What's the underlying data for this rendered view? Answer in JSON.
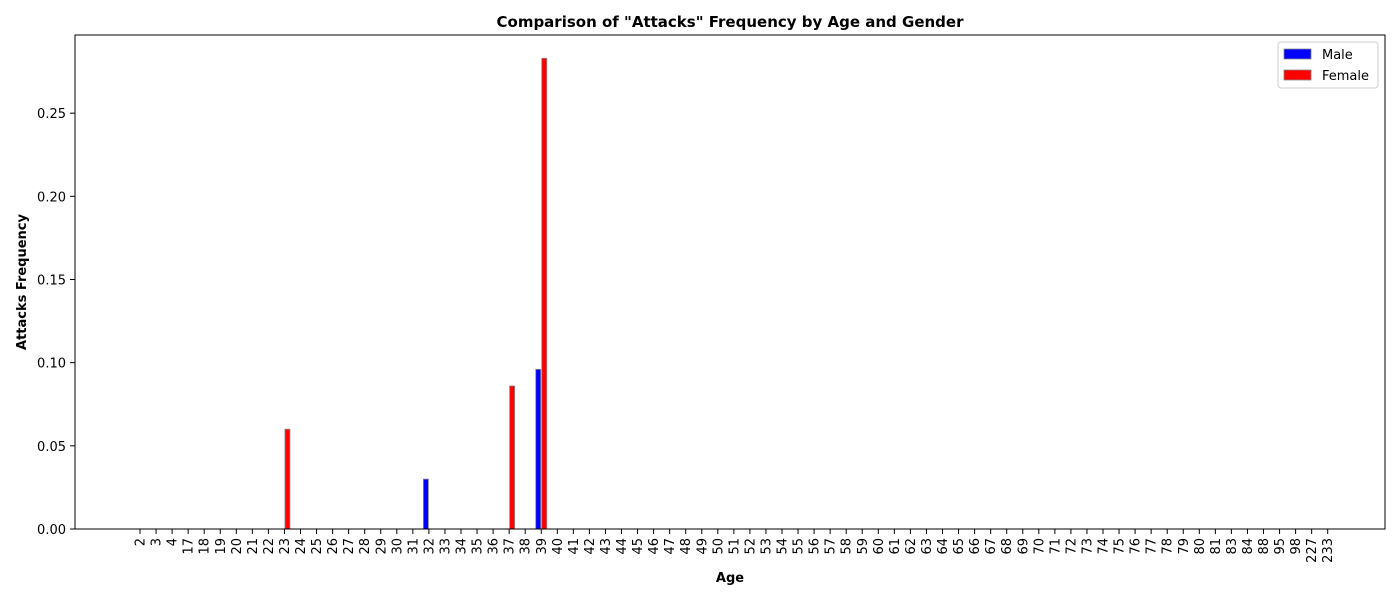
{
  "chart_data": {
    "type": "bar",
    "title": "Comparison of \"Attacks\" Frequency by Age and Gender",
    "xlabel": "Age",
    "ylabel": "Attacks Frequency",
    "categories": [
      "2",
      "3",
      "4",
      "17",
      "18",
      "19",
      "20",
      "21",
      "22",
      "23",
      "24",
      "25",
      "26",
      "27",
      "28",
      "29",
      "30",
      "31",
      "32",
      "33",
      "34",
      "35",
      "36",
      "37",
      "38",
      "39",
      "40",
      "41",
      "42",
      "43",
      "44",
      "45",
      "46",
      "47",
      "48",
      "49",
      "50",
      "51",
      "52",
      "53",
      "54",
      "55",
      "56",
      "57",
      "58",
      "59",
      "60",
      "61",
      "62",
      "63",
      "64",
      "65",
      "66",
      "67",
      "68",
      "69",
      "70",
      "71",
      "72",
      "73",
      "74",
      "75",
      "76",
      "77",
      "78",
      "79",
      "80",
      "81",
      "83",
      "84",
      "88",
      "95",
      "98",
      "227",
      "233"
    ],
    "series": [
      {
        "name": "Male",
        "color": "#0000ff",
        "values": {
          "32": 0.03,
          "39": 0.096
        }
      },
      {
        "name": "Female",
        "color": "#ff0000",
        "values": {
          "23": 0.06,
          "37": 0.086,
          "39": 0.283
        }
      }
    ],
    "ylim": [
      0,
      0.297
    ],
    "yticks": [
      0.0,
      0.05,
      0.1,
      0.15,
      0.2,
      0.25
    ],
    "ytick_labels": [
      "0.00",
      "0.05",
      "0.10",
      "0.15",
      "0.20",
      "0.25"
    ],
    "legend_position": "top-right",
    "grid": false
  }
}
